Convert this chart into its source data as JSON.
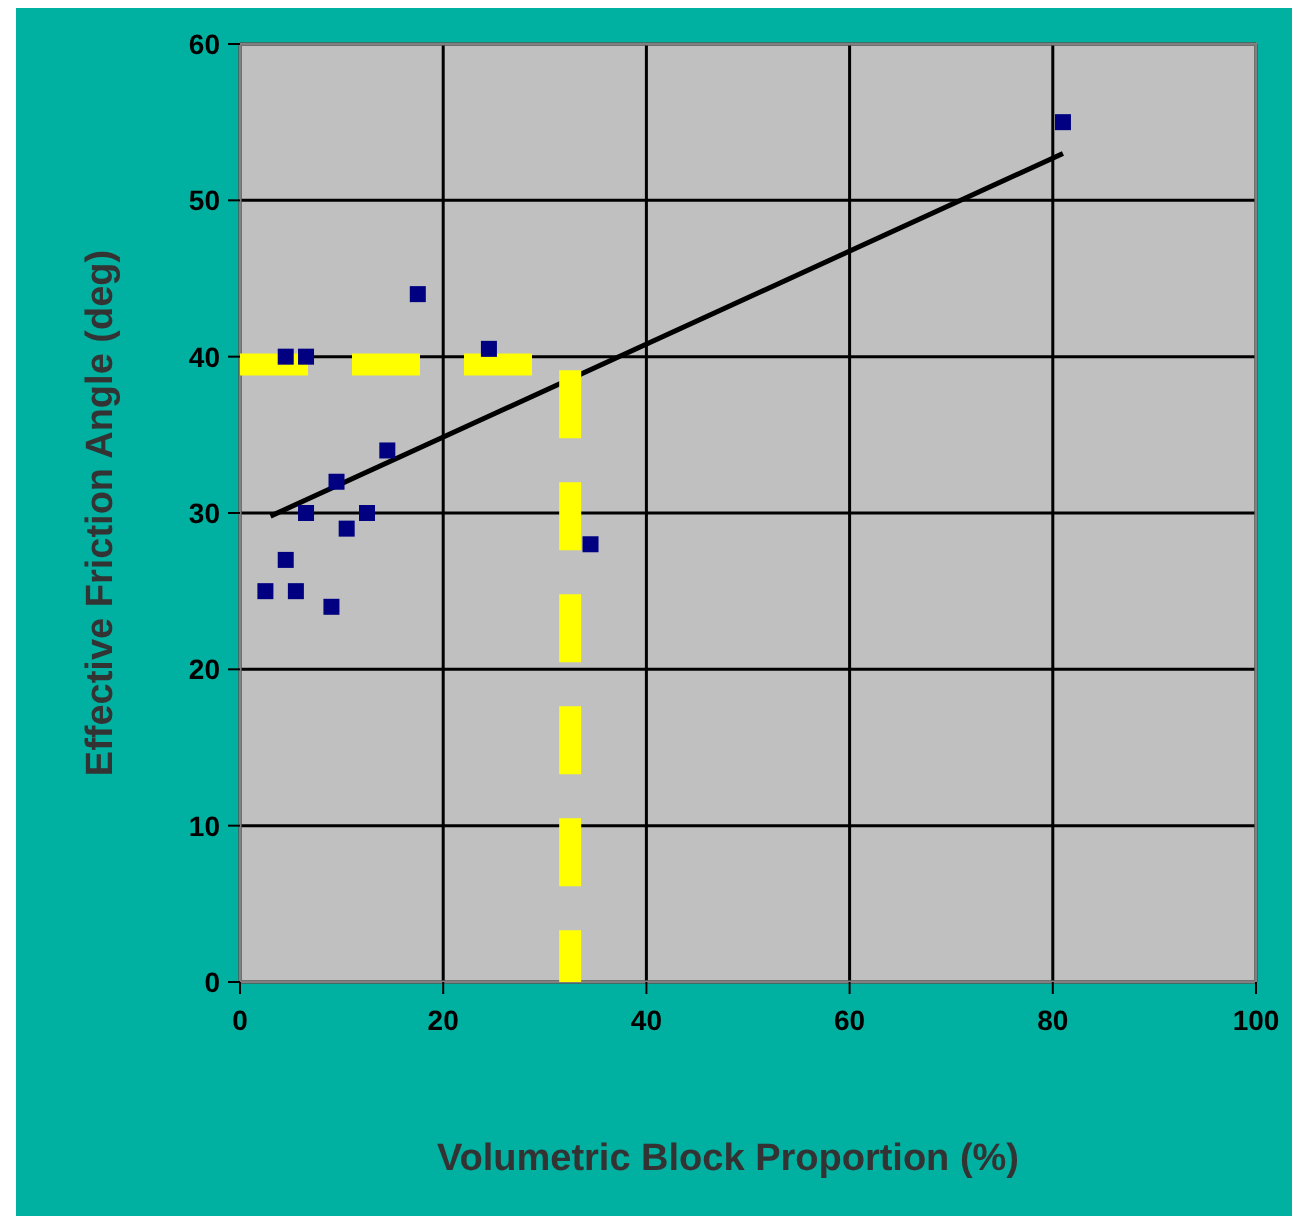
{
  "chart_data": {
    "type": "scatter",
    "xlabel": "Volumetric Block Proportion (%)",
    "ylabel": "Effective Friction Angle (deg)",
    "xlim": [
      0,
      100
    ],
    "xticks": [
      0,
      20,
      40,
      60,
      80,
      100
    ],
    "ylim": [
      0,
      60
    ],
    "yticks": [
      0,
      10,
      20,
      30,
      40,
      50,
      60
    ],
    "grid": true,
    "marker": "square",
    "series": [
      {
        "color": "#000080",
        "x": [
          17.5,
          4.5,
          6.5,
          24.5,
          14.5,
          9.5,
          6.5,
          12.5,
          10.5,
          4.5,
          2.5,
          5.5,
          9,
          34.5,
          81
        ],
        "values": [
          44,
          40,
          40,
          40.5,
          34,
          32,
          30,
          30,
          29,
          27,
          25,
          25,
          24,
          28,
          55
        ]
      },
      {
        "type": "line",
        "color": "#000000",
        "marker": "none",
        "line_style": "solid",
        "x": [
          3,
          81
        ],
        "values": [
          29.8,
          53
        ]
      },
      {
        "type": "line",
        "color": "#ffff00",
        "marker": "none",
        "line_style": "dashed",
        "x": [
          0,
          32.5,
          32.5
        ],
        "values": [
          39.5,
          39.5,
          0
        ]
      }
    ]
  }
}
